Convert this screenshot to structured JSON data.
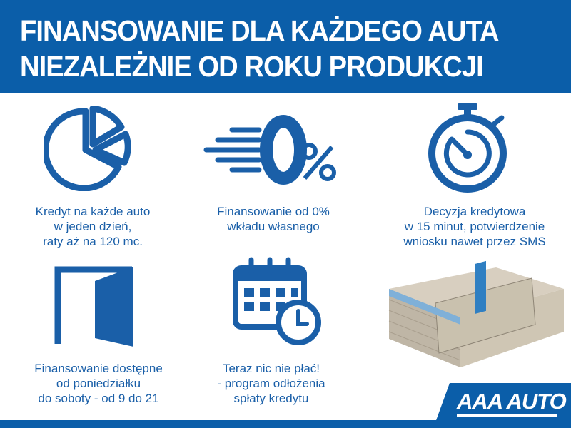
{
  "header": {
    "line1": "FINANSOWANIE DLA KAŻDEGO AUTA",
    "line2": "NIEZALEŻNIE OD ROKU PRODUKCJI"
  },
  "features": [
    {
      "icon": "pie-chart-icon",
      "lines": [
        "Kredyt na każde auto",
        "w jeden dzień,",
        "raty aż na 120 mc."
      ]
    },
    {
      "icon": "zero-percent-icon",
      "lines": [
        "Finansowanie od 0%",
        "wkładu własnego"
      ]
    },
    {
      "icon": "stopwatch-icon",
      "lines": [
        "Decyzja kredytowa",
        "w 15 minut, potwierdzenie",
        "wniosku nawet przez SMS"
      ]
    },
    {
      "icon": "open-door-icon",
      "lines": [
        "Finansowanie dostępne",
        "od poniedziałku",
        "do soboty - od 9 do 21"
      ]
    },
    {
      "icon": "calendar-clock-icon",
      "lines": [
        "Teraz nic nie płać!",
        "- program odłożenia",
        "spłaty kredytu"
      ]
    }
  ],
  "logo": {
    "text": "AAA AUTO"
  },
  "colors": {
    "brand": "#0b5ea9",
    "text": "#1a5fa8"
  }
}
